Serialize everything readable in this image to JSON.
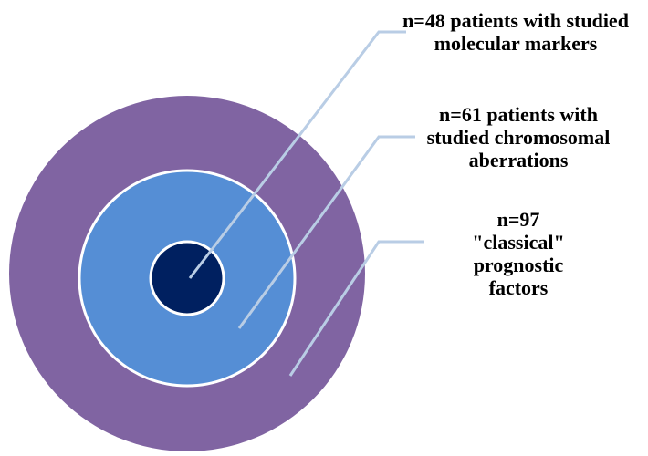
{
  "nodes": [
    {
      "lines": [
        "n=48 patients with studied",
        "molecular markers"
      ]
    },
    {
      "lines": [
        "n=61 patients with",
        "studied chromosomal",
        "aberrations"
      ]
    },
    {
      "lines": [
        "n=97",
        "\"classical\"",
        "prognostic",
        "factors"
      ]
    }
  ]
}
